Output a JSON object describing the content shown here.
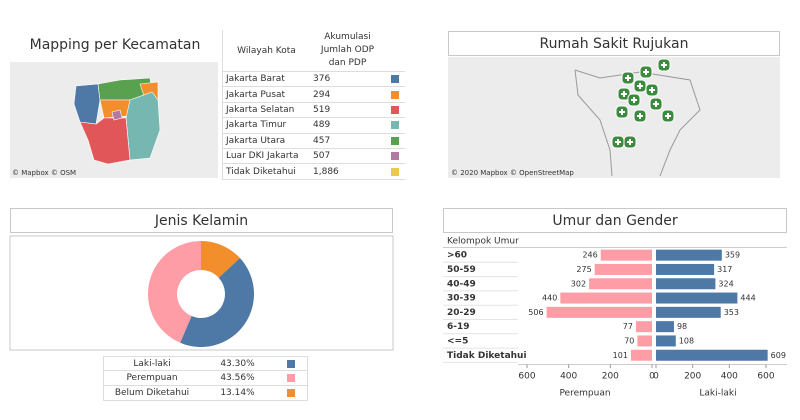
{
  "panels": {
    "mapping": {
      "title": "Mapping per Kecamatan",
      "attribution": "© Mapbox © OSM",
      "table": {
        "header": [
          "Wilayah Kota",
          "Akumulasi Jumlah ODP dan PDP"
        ],
        "rows": [
          {
            "name": "Jakarta Barat",
            "value": 376,
            "color": "#4e79a7"
          },
          {
            "name": "Jakarta Pusat",
            "value": 294,
            "color": "#f28e2b"
          },
          {
            "name": "Jakarta Selatan",
            "value": 519,
            "color": "#e15759"
          },
          {
            "name": "Jakarta Timur",
            "value": 489,
            "color": "#76b7b2"
          },
          {
            "name": "Jakarta Utara",
            "value": 457,
            "color": "#59a14f"
          },
          {
            "name": "Luar DKI Jakarta",
            "value": 507,
            "color": "#b07aa1"
          },
          {
            "name": "Tidak Diketahui",
            "value": "1,886",
            "color": "#edc948"
          }
        ]
      }
    },
    "hospital": {
      "title": "Rumah Sakit Rujukan",
      "attribution": "© 2020 Mapbox © OpenStreetMap"
    }
  },
  "chart_data": [
    {
      "type": "donut",
      "title": "Jenis Kelamin",
      "categories": [
        "Laki-laki",
        "Perempuan",
        "Belum Diketahui"
      ],
      "values": [
        43.3,
        43.56,
        13.14
      ],
      "value_labels": [
        "43.30%",
        "43.56%",
        "13.14%"
      ],
      "colors": [
        "#4e79a7",
        "#ff9da7",
        "#f28e2b"
      ]
    },
    {
      "type": "butterfly",
      "title": "Umur dan Gender",
      "category_header": "Kelompok Umur",
      "categories": [
        ">60",
        "50-59",
        "40-49",
        "30-39",
        "20-29",
        "6-19",
        "<=5",
        "Tidak Diketahui"
      ],
      "series": [
        {
          "name": "Perempuan",
          "color": "#ff9da7",
          "values": [
            246,
            275,
            302,
            440,
            506,
            77,
            70,
            101
          ],
          "xlim": [
            0,
            600
          ],
          "xticks": [
            0,
            200,
            400,
            600
          ]
        },
        {
          "name": "Laki-laki",
          "color": "#4e79a7",
          "values": [
            359,
            317,
            324,
            444,
            353,
            98,
            108,
            609
          ],
          "xlim": [
            0,
            600
          ],
          "xticks": [
            0,
            200,
            400,
            600
          ]
        }
      ]
    }
  ]
}
